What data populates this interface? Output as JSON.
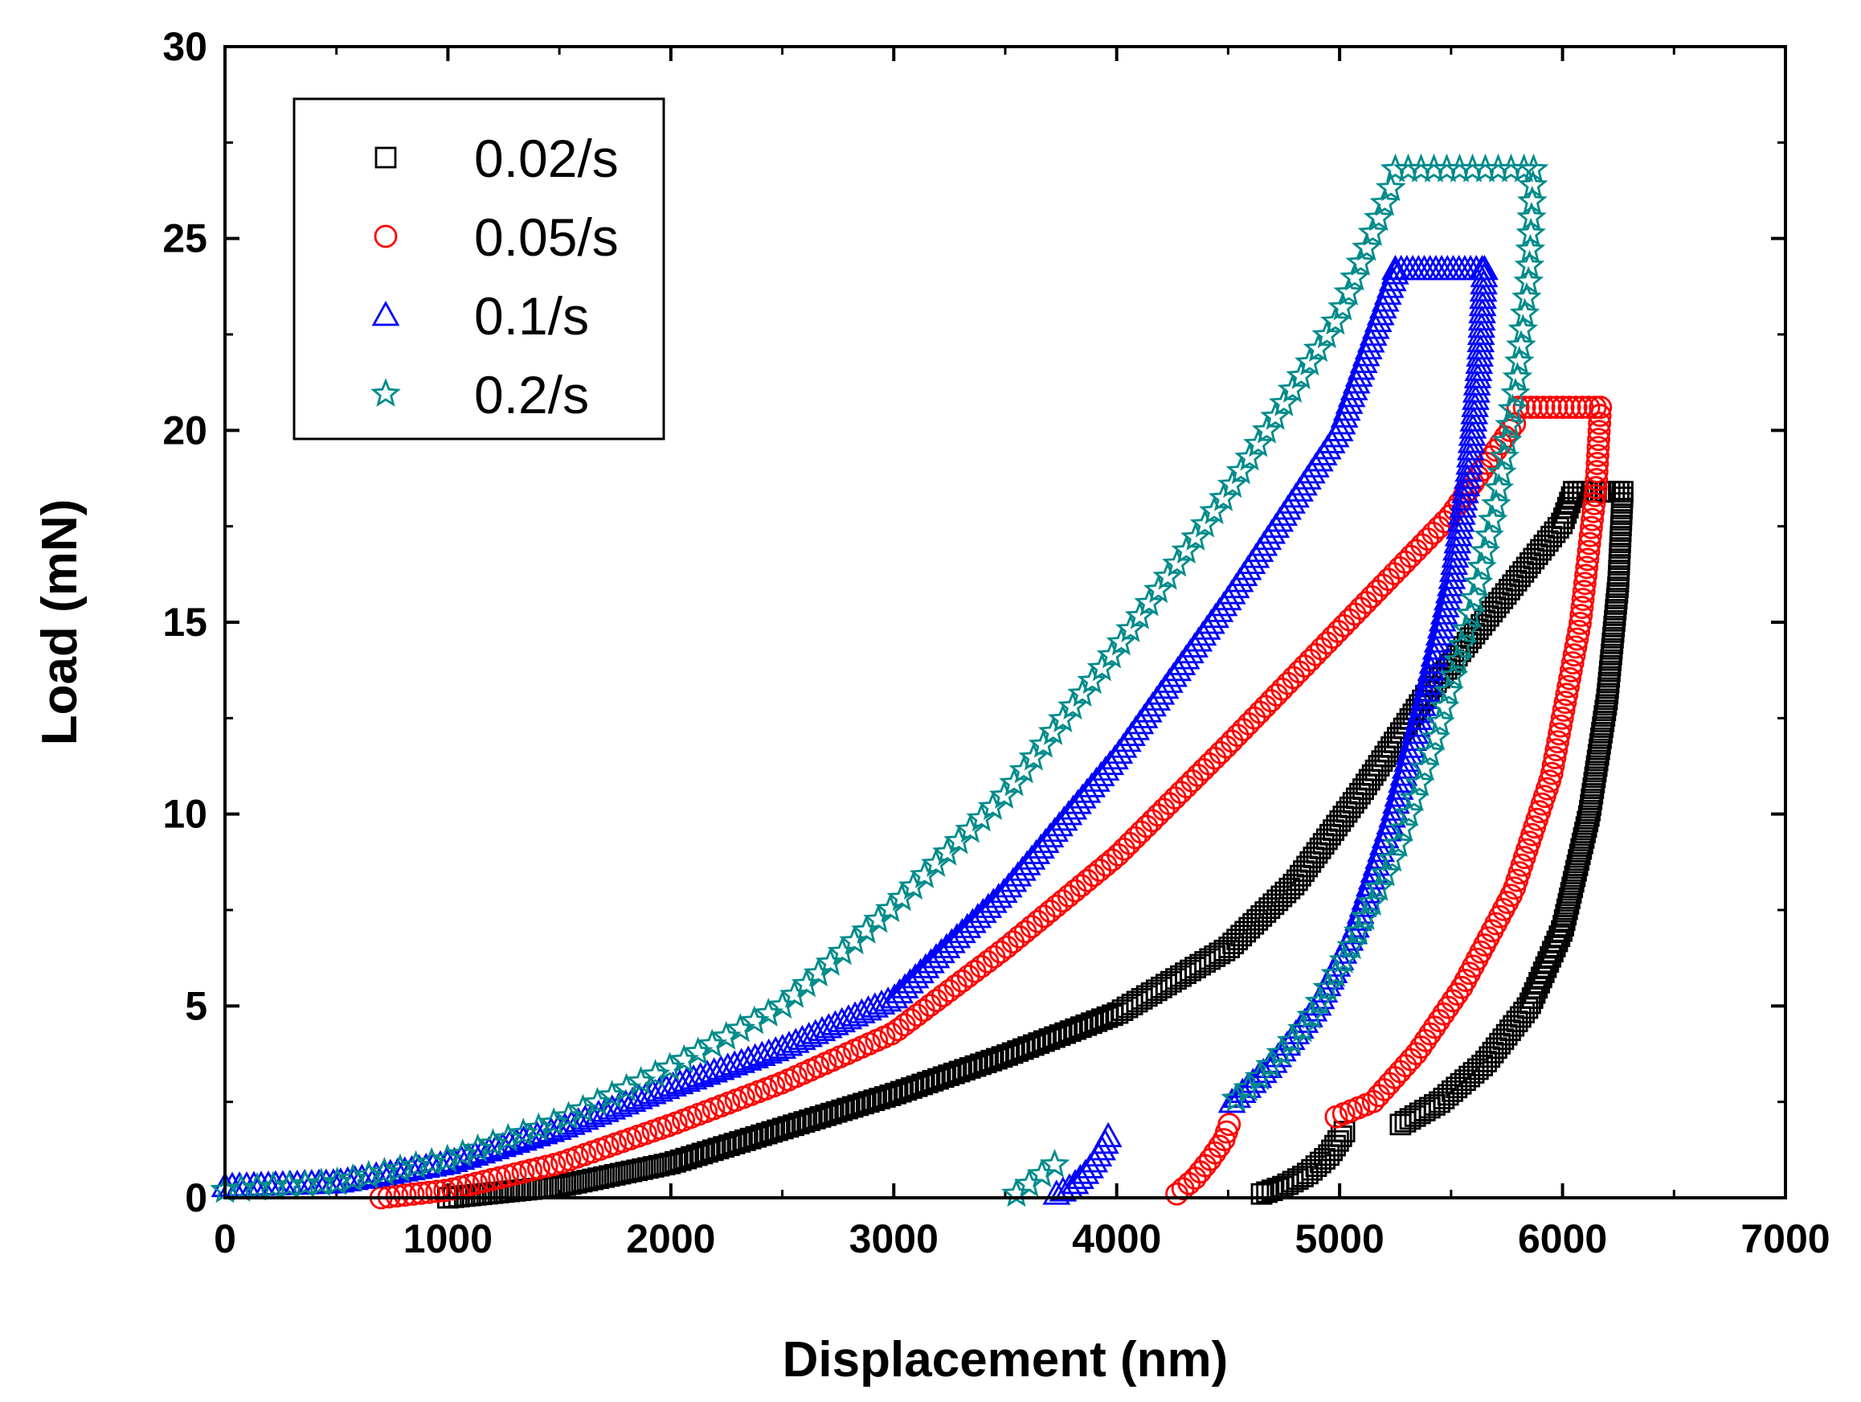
{
  "chart_data": {
    "type": "scatter",
    "title": "",
    "xlabel": "Displacement (nm)",
    "ylabel": "Load (mN)",
    "xlim": [
      0,
      7000
    ],
    "ylim": [
      0,
      30
    ],
    "xticks": [
      0,
      1000,
      2000,
      3000,
      4000,
      5000,
      6000,
      7000
    ],
    "yticks": [
      0,
      5,
      10,
      15,
      20,
      25,
      30
    ],
    "grid": false,
    "legend_position": "top-left",
    "series": [
      {
        "name": "0.02/s",
        "marker": "square",
        "color": "#000000",
        "loading": [
          [
            1000,
            0
          ],
          [
            1500,
            0.3
          ],
          [
            2000,
            0.9
          ],
          [
            2500,
            1.8
          ],
          [
            3000,
            2.7
          ],
          [
            3500,
            3.7
          ],
          [
            4000,
            4.8
          ],
          [
            4500,
            6.5
          ],
          [
            4800,
            8.2
          ],
          [
            5100,
            10.6
          ],
          [
            5400,
            13.2
          ],
          [
            5700,
            15.4
          ],
          [
            6000,
            17.6
          ],
          [
            6050,
            18.4
          ]
        ],
        "hold": [
          [
            6050,
            18.4
          ],
          [
            6270,
            18.4
          ]
        ],
        "unloading": [
          [
            6270,
            18.4
          ],
          [
            6250,
            16
          ],
          [
            6200,
            13
          ],
          [
            6120,
            10
          ],
          [
            6000,
            7
          ],
          [
            5850,
            5
          ],
          [
            5650,
            3.5
          ],
          [
            5450,
            2.5
          ],
          [
            5270,
            1.9
          ]
        ],
        "tail": [
          [
            4650,
            0.1
          ],
          [
            4750,
            0.3
          ],
          [
            4850,
            0.6
          ],
          [
            4950,
            1.1
          ],
          [
            5030,
            1.8
          ]
        ]
      },
      {
        "name": "0.05/s",
        "marker": "circle",
        "color": "#ff0000",
        "loading": [
          [
            700,
            0
          ],
          [
            1000,
            0.2
          ],
          [
            1500,
            0.9
          ],
          [
            2000,
            1.9
          ],
          [
            2500,
            3.0
          ],
          [
            3000,
            4.3
          ],
          [
            3500,
            6.5
          ],
          [
            4000,
            8.9
          ],
          [
            4500,
            11.8
          ],
          [
            5000,
            14.8
          ],
          [
            5500,
            17.8
          ],
          [
            5800,
            20.3
          ]
        ],
        "hold": [
          [
            5800,
            20.6
          ],
          [
            6170,
            20.6
          ]
        ],
        "unloading": [
          [
            6170,
            20.6
          ],
          [
            6150,
            18.5
          ],
          [
            6080,
            15
          ],
          [
            5950,
            11
          ],
          [
            5780,
            8
          ],
          [
            5550,
            5.5
          ],
          [
            5350,
            3.8
          ],
          [
            5150,
            2.5
          ],
          [
            4980,
            2.1
          ]
        ],
        "tail": [
          [
            4270,
            0.1
          ],
          [
            4350,
            0.5
          ],
          [
            4420,
            1.0
          ],
          [
            4480,
            1.5
          ],
          [
            4510,
            2.0
          ]
        ]
      },
      {
        "name": "0.1/s",
        "marker": "triangle",
        "color": "#0000ff",
        "loading": [
          [
            0,
            0.3
          ],
          [
            500,
            0.4
          ],
          [
            1000,
            0.9
          ],
          [
            1500,
            1.8
          ],
          [
            2000,
            2.9
          ],
          [
            2500,
            3.9
          ],
          [
            3000,
            5.2
          ],
          [
            3500,
            8.0
          ],
          [
            4000,
            11.5
          ],
          [
            4500,
            15.6
          ],
          [
            5000,
            20.0
          ],
          [
            5250,
            24.1
          ]
        ],
        "hold": [
          [
            5250,
            24.2
          ],
          [
            5650,
            24.2
          ]
        ],
        "unloading": [
          [
            5650,
            24.2
          ],
          [
            5630,
            22
          ],
          [
            5580,
            19
          ],
          [
            5500,
            16
          ],
          [
            5380,
            13
          ],
          [
            5240,
            10
          ],
          [
            5070,
            7
          ],
          [
            4900,
            5
          ],
          [
            4700,
            3.5
          ],
          [
            4500,
            2.4
          ]
        ],
        "tail": [
          [
            3730,
            0.1
          ],
          [
            3800,
            0.3
          ],
          [
            3870,
            0.7
          ],
          [
            3930,
            1.2
          ],
          [
            3970,
            1.7
          ]
        ]
      },
      {
        "name": "0.2/s",
        "marker": "star",
        "color": "#008b8b",
        "loading": [
          [
            0,
            0.2
          ],
          [
            500,
            0.4
          ],
          [
            1000,
            1.0
          ],
          [
            1500,
            2.0
          ],
          [
            2000,
            3.4
          ],
          [
            2500,
            5.0
          ],
          [
            3000,
            7.6
          ],
          [
            3500,
            10.5
          ],
          [
            4000,
            14.3
          ],
          [
            4500,
            18.4
          ],
          [
            5000,
            23.0
          ],
          [
            5250,
            26.6
          ]
        ],
        "hold": [
          [
            5250,
            26.8
          ],
          [
            5870,
            26.8
          ]
        ],
        "unloading": [
          [
            5870,
            26.8
          ],
          [
            5850,
            24
          ],
          [
            5790,
            21
          ],
          [
            5700,
            18
          ],
          [
            5580,
            15
          ],
          [
            5430,
            12
          ],
          [
            5250,
            9
          ],
          [
            5050,
            6.5
          ],
          [
            4850,
            4.5
          ],
          [
            4620,
            3.0
          ],
          [
            4520,
            2.5
          ]
        ],
        "tail": [
          [
            3550,
            0.1
          ],
          [
            3730,
            0.9
          ]
        ]
      }
    ]
  }
}
